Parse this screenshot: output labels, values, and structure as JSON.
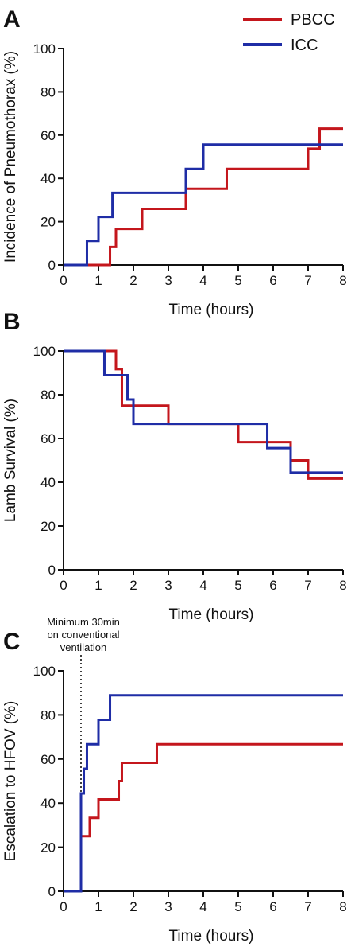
{
  "legend": [
    {
      "name": "PBCC",
      "color": "#c4161c"
    },
    {
      "name": "ICC",
      "color": "#1f2da6"
    }
  ],
  "chart_data": [
    {
      "panel": "A",
      "type": "line",
      "step": true,
      "xlabel": "Time (hours)",
      "ylabel": "Incidence of Pneumothorax (%)",
      "xlim": [
        0,
        8
      ],
      "ylim": [
        0,
        100
      ],
      "xticks": [
        "0",
        "1",
        "2",
        "3",
        "4",
        "5",
        "6",
        "7",
        "8"
      ],
      "yticks": [
        "0",
        "20",
        "40",
        "60",
        "80",
        "100"
      ],
      "series": [
        {
          "name": "PBCC",
          "color": "#c4161c",
          "x": [
            0,
            1.33,
            1.5,
            2.25,
            3.5,
            4.67,
            7.0,
            7.33,
            8
          ],
          "y": [
            0,
            8.3,
            16.7,
            25.9,
            35.2,
            44.4,
            53.7,
            63.0,
            63.0
          ]
        },
        {
          "name": "ICC",
          "color": "#1f2da6",
          "x": [
            0,
            0.67,
            1.0,
            1.4,
            3.5,
            4.0,
            8
          ],
          "y": [
            0,
            11.1,
            22.2,
            33.3,
            44.4,
            55.6,
            55.6
          ]
        }
      ]
    },
    {
      "panel": "B",
      "type": "line",
      "step": true,
      "xlabel": "Time (hours)",
      "ylabel": "Lamb Survival (%)",
      "xlim": [
        0,
        8
      ],
      "ylim": [
        0,
        100
      ],
      "xticks": [
        "0",
        "1",
        "2",
        "3",
        "4",
        "5",
        "6",
        "7",
        "8"
      ],
      "yticks": [
        "0",
        "20",
        "40",
        "60",
        "80",
        "100"
      ],
      "series": [
        {
          "name": "PBCC",
          "color": "#c4161c",
          "x": [
            0,
            1.5,
            1.67,
            3.0,
            5.0,
            6.5,
            7.0,
            8
          ],
          "y": [
            100,
            91.7,
            75.0,
            66.7,
            58.3,
            50.0,
            41.7,
            41.7
          ]
        },
        {
          "name": "ICC",
          "color": "#1f2da6",
          "x": [
            0,
            1.17,
            1.83,
            2.0,
            5.83,
            6.5,
            8
          ],
          "y": [
            100,
            88.9,
            77.8,
            66.7,
            55.6,
            44.4,
            44.4
          ]
        }
      ]
    },
    {
      "panel": "C",
      "type": "line",
      "step": true,
      "xlabel": "Time (hours)",
      "ylabel": "Escalation to HFOV (%)",
      "xlim": [
        0,
        8
      ],
      "ylim": [
        0,
        100
      ],
      "xticks": [
        "0",
        "1",
        "2",
        "3",
        "4",
        "5",
        "6",
        "7",
        "8"
      ],
      "yticks": [
        "0",
        "20",
        "40",
        "60",
        "80",
        "100"
      ],
      "reference_line_x": 0.5,
      "annotation": [
        "Minimum 30min",
        "on conventional",
        "ventilation"
      ],
      "series": [
        {
          "name": "PBCC",
          "color": "#c4161c",
          "x": [
            0,
            0.5,
            0.75,
            1.0,
            1.58,
            1.67,
            2.67,
            8
          ],
          "y": [
            0,
            25.0,
            33.3,
            41.7,
            50.0,
            58.3,
            66.7,
            66.7
          ]
        },
        {
          "name": "ICC",
          "color": "#1f2da6",
          "x": [
            0,
            0.5,
            0.58,
            0.67,
            1.0,
            1.33,
            8
          ],
          "y": [
            0,
            44.4,
            55.6,
            66.7,
            77.8,
            88.9,
            88.9
          ]
        }
      ]
    }
  ]
}
